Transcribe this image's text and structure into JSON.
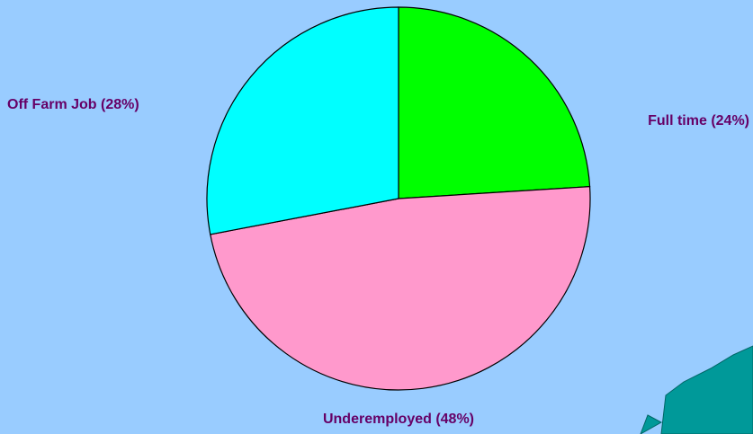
{
  "chart_data": {
    "type": "pie",
    "categories": [
      "Full time (24%)",
      "Underemployed (48%)",
      "Off Farm Job (28%)"
    ],
    "values": [
      24,
      48,
      28
    ],
    "colors": [
      "#00ff00",
      "#ff99cc",
      "#00ffff"
    ]
  }
}
